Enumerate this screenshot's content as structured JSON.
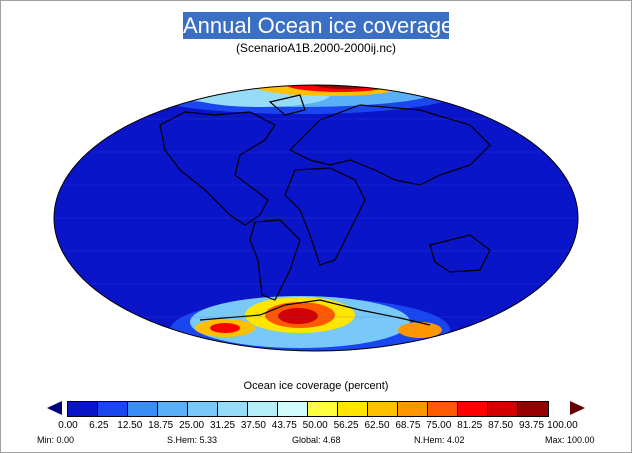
{
  "title": "Annual Ocean ice coverage",
  "subtitle": "(ScenarioA1B.2000-2000ij.nc)",
  "chart_data": {
    "type": "heatmap",
    "projection": "Mollweide",
    "colorbar_label": "Ocean ice coverage (percent)",
    "ticks": [
      "0.00",
      "6.25",
      "12.50",
      "18.75",
      "25.00",
      "31.25",
      "37.50",
      "43.75",
      "50.00",
      "56.25",
      "62.50",
      "68.75",
      "75.00",
      "81.25",
      "87.50",
      "93.75",
      "100.00"
    ],
    "colors": [
      "#0a14c8",
      "#1a46f0",
      "#3a8cf8",
      "#5ab0f8",
      "#78c8f8",
      "#96dcf8",
      "#b4eef8",
      "#d0fcfc",
      "#ffff40",
      "#ffe600",
      "#ffc000",
      "#ff9600",
      "#ff5a00",
      "#ff0000",
      "#d20000",
      "#960000"
    ],
    "under_color": "#000080",
    "over_color": "#640000"
  },
  "stats": {
    "min": "Min: 0.00",
    "shem": "S.Hem: 5.33",
    "global": "Global: 4.68",
    "nhem": "N.Hem: 4.02",
    "max": "Max: 100.00"
  }
}
